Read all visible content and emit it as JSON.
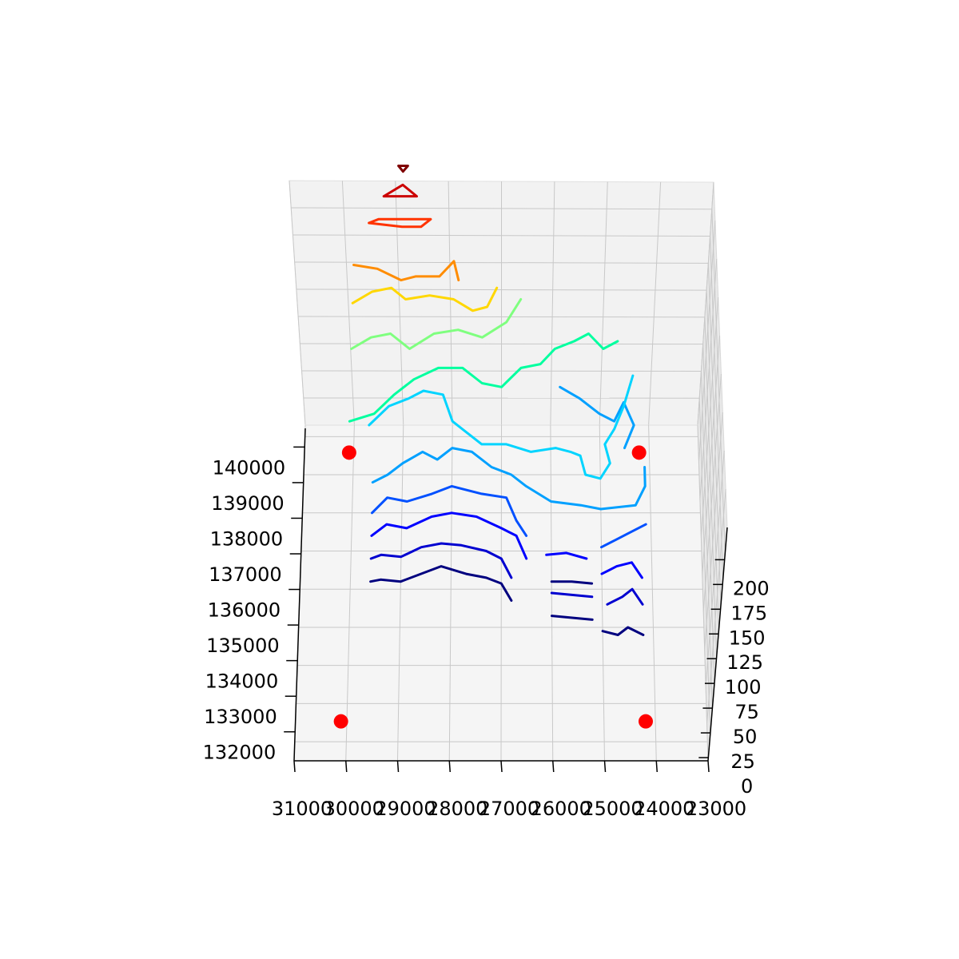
{
  "chart_data": {
    "type": "contour3d",
    "title": "",
    "xlabel": "",
    "ylabel": "",
    "zlabel": "",
    "grid": true,
    "legend": "none",
    "x_ticks": [
      31000,
      30000,
      29000,
      28000,
      27000,
      26000,
      25000,
      24000,
      23000
    ],
    "x_tick_labels": [
      "31000",
      "30000",
      "29000",
      "28000",
      "27000",
      "26000",
      "25000",
      "24000",
      "23000"
    ],
    "y_ticks": [
      140000,
      139000,
      138000,
      137000,
      136000,
      135000,
      134000,
      133000,
      132000
    ],
    "y_tick_labels": [
      "140000",
      "139000",
      "138000",
      "137000",
      "136000",
      "135000",
      "134000",
      "133000",
      "132000"
    ],
    "z_ticks": [
      200,
      175,
      150,
      125,
      100,
      75,
      50,
      25,
      0
    ],
    "z_tick_labels": [
      "200",
      "175",
      "150",
      "125",
      "100",
      "75",
      "50",
      "25",
      "0"
    ],
    "xlim": [
      31000,
      23000
    ],
    "ylim": [
      131500,
      140300
    ],
    "zlim": [
      0,
      210
    ],
    "colormap": "jet",
    "marker_color": "#ff0000",
    "corner_markers": [
      {
        "x": 30100,
        "y": 140000,
        "z": 0
      },
      {
        "x": 24200,
        "y": 140000,
        "z": 0
      },
      {
        "x": 30100,
        "y": 131800,
        "z": 0
      },
      {
        "x": 24200,
        "y": 131800,
        "z": 0
      }
    ],
    "contour_levels": [
      {
        "level": 20,
        "color": "#00007f",
        "paths": [
          [
            [
              29600,
              136200
            ],
            [
              29400,
              136250
            ],
            [
              29000,
              136200
            ],
            [
              28600,
              136400
            ],
            [
              28200,
              136600
            ],
            [
              27700,
              136400
            ],
            [
              27300,
              136300
            ],
            [
              27000,
              136150
            ],
            [
              26800,
              135700
            ]
          ],
          [
            [
              26000,
              136200
            ],
            [
              25600,
              136200
            ],
            [
              25200,
              136150
            ]
          ],
          [
            [
              26000,
              135300
            ],
            [
              25600,
              135250
            ],
            [
              25200,
              135200
            ]
          ],
          [
            [
              25000,
              134900
            ],
            [
              24700,
              134800
            ],
            [
              24500,
              135000
            ],
            [
              24200,
              134800
            ]
          ]
        ]
      },
      {
        "level": 40,
        "color": "#0000d0",
        "paths": [
          [
            [
              29600,
              136800
            ],
            [
              29400,
              136900
            ],
            [
              29000,
              136850
            ],
            [
              28600,
              137100
            ],
            [
              28200,
              137200
            ],
            [
              27800,
              137150
            ],
            [
              27300,
              137000
            ],
            [
              27000,
              136800
            ],
            [
              26800,
              136300
            ]
          ],
          [
            [
              26000,
              135900
            ],
            [
              25600,
              135850
            ],
            [
              25200,
              135800
            ]
          ],
          [
            [
              24900,
              135600
            ],
            [
              24600,
              135800
            ],
            [
              24400,
              136000
            ],
            [
              24200,
              135600
            ]
          ]
        ]
      },
      {
        "level": 60,
        "color": "#0000ff",
        "paths": [
          [
            [
              29600,
              137400
            ],
            [
              29300,
              137700
            ],
            [
              28900,
              137600
            ],
            [
              28400,
              137900
            ],
            [
              28000,
              138000
            ],
            [
              27500,
              137900
            ],
            [
              27000,
              137600
            ],
            [
              26700,
              137400
            ],
            [
              26500,
              136800
            ]
          ],
          [
            [
              26100,
              136900
            ],
            [
              25700,
              136950
            ],
            [
              25300,
              136800
            ]
          ],
          [
            [
              25000,
              136400
            ],
            [
              24700,
              136600
            ],
            [
              24400,
              136700
            ],
            [
              24200,
              136300
            ]
          ]
        ]
      },
      {
        "level": 80,
        "color": "#0050ff",
        "paths": [
          [
            [
              29600,
              138000
            ],
            [
              29300,
              138400
            ],
            [
              28900,
              138300
            ],
            [
              28400,
              138500
            ],
            [
              28000,
              138700
            ],
            [
              27400,
              138500
            ],
            [
              26900,
              138400
            ],
            [
              26700,
              137800
            ],
            [
              26500,
              137400
            ]
          ],
          [
            [
              25000,
              137100
            ],
            [
              24700,
              137300
            ],
            [
              24400,
              137500
            ],
            [
              24100,
              137700
            ]
          ]
        ]
      },
      {
        "level": 100,
        "color": "#00a0ff",
        "paths": [
          [
            [
              29600,
              138800
            ],
            [
              29300,
              139000
            ],
            [
              29000,
              139300
            ],
            [
              28600,
              139600
            ],
            [
              28300,
              139400
            ],
            [
              28000,
              139700
            ],
            [
              27600,
              139600
            ],
            [
              27200,
              139200
            ],
            [
              26800,
              139000
            ],
            [
              26500,
              138700
            ],
            [
              26000,
              138300
            ],
            [
              25400,
              138200
            ],
            [
              25000,
              138100
            ],
            [
              24300,
              138200
            ],
            [
              24100,
              138700
            ],
            [
              24100,
              139200
            ]
          ],
          [
            [
              25800,
              141300
            ],
            [
              25400,
              141000
            ],
            [
              25000,
              140600
            ],
            [
              24700,
              140400
            ],
            [
              24500,
              140900
            ],
            [
              24300,
              140300
            ],
            [
              24500,
              139700
            ]
          ]
        ]
      },
      {
        "level": 120,
        "color": "#00d4ff",
        "paths": [
          [
            [
              29700,
              140300
            ],
            [
              29300,
              140800
            ],
            [
              28900,
              141000
            ],
            [
              28600,
              141200
            ],
            [
              28200,
              141100
            ],
            [
              28000,
              140400
            ],
            [
              27800,
              140200
            ],
            [
              27400,
              139800
            ],
            [
              26900,
              139800
            ],
            [
              26400,
              139600
            ],
            [
              25900,
              139700
            ],
            [
              25600,
              139600
            ],
            [
              25400,
              139500
            ],
            [
              25300,
              139000
            ],
            [
              25000,
              138900
            ],
            [
              24800,
              139300
            ],
            [
              24900,
              139800
            ],
            [
              24700,
              140200
            ],
            [
              24500,
              140800
            ],
            [
              24300,
              141600
            ]
          ]
        ]
      },
      {
        "level": 140,
        "color": "#00ff9f",
        "paths": [
          [
            [
              30100,
              140400
            ],
            [
              29600,
              140600
            ],
            [
              29200,
              141100
            ],
            [
              28800,
              141500
            ],
            [
              28300,
              141800
            ],
            [
              27800,
              141800
            ],
            [
              27400,
              141400
            ],
            [
              27000,
              141300
            ],
            [
              26600,
              141800
            ],
            [
              26200,
              141900
            ],
            [
              25900,
              142300
            ],
            [
              25500,
              142500
            ],
            [
              25200,
              142700
            ],
            [
              24900,
              142300
            ],
            [
              24600,
              142500
            ]
          ]
        ]
      },
      {
        "level": 160,
        "color": "#7fff7f",
        "paths": [
          [
            [
              30100,
              142300
            ],
            [
              29700,
              142600
            ],
            [
              29300,
              142700
            ],
            [
              28900,
              142300
            ],
            [
              28400,
              142700
            ],
            [
              27900,
              142800
            ],
            [
              27400,
              142600
            ],
            [
              26900,
              143000
            ],
            [
              26600,
              143600
            ]
          ]
        ]
      },
      {
        "level": 180,
        "color": "#ffd700",
        "paths": [
          [
            [
              30100,
              143500
            ],
            [
              29700,
              143800
            ],
            [
              29300,
              143900
            ],
            [
              29000,
              143600
            ],
            [
              28500,
              143700
            ],
            [
              28000,
              143600
            ],
            [
              27600,
              143300
            ],
            [
              27300,
              143400
            ],
            [
              27100,
              143900
            ]
          ]
        ]
      },
      {
        "level": 190,
        "color": "#ff8c00",
        "paths": [
          [
            [
              30100,
              144500
            ],
            [
              29600,
              144400
            ],
            [
              29100,
              144100
            ],
            [
              28800,
              144200
            ],
            [
              28300,
              144200
            ],
            [
              28000,
              144600
            ],
            [
              27900,
              144100
            ]
          ]
        ]
      },
      {
        "level": 200,
        "color": "#ff3300",
        "paths": [
          [
            [
              29800,
              145600
            ],
            [
              29100,
              145500
            ],
            [
              28700,
              145500
            ],
            [
              28500,
              145700
            ],
            [
              29600,
              145700
            ],
            [
              29800,
              145600
            ]
          ]
        ]
      },
      {
        "level": 205,
        "color": "#cc0000",
        "paths": [
          [
            [
              29500,
              146300
            ],
            [
              28800,
              146300
            ],
            [
              29100,
              146600
            ],
            [
              29500,
              146300
            ]
          ]
        ]
      },
      {
        "level": 210,
        "color": "#7f0000",
        "paths": [
          [
            [
              29200,
              147100
            ],
            [
              29000,
              147100
            ],
            [
              29100,
              146950
            ],
            [
              29200,
              147100
            ]
          ]
        ]
      }
    ]
  }
}
